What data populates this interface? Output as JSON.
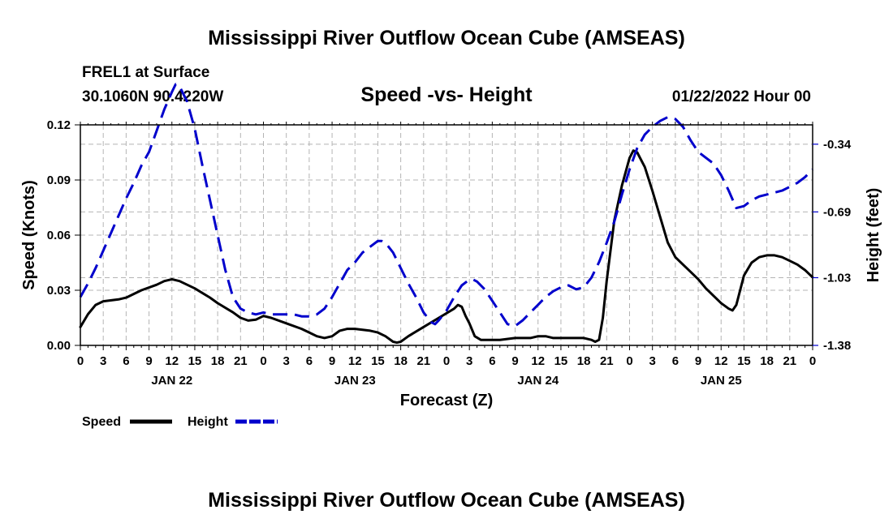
{
  "chart_data": {
    "type": "line",
    "title": "Mississippi River Outflow Ocean Cube (AMSEAS)",
    "title_repeat": "Mississippi River Outflow Ocean Cube (AMSEAS)",
    "station": "FREL1 at Surface",
    "location": "30.1060N  90.4220W",
    "subtitle": "Speed -vs- Height",
    "datetime": "01/22/2022 Hour 00",
    "xlabel": "Forecast (Z)",
    "ylabel_left": "Speed (Knots)",
    "ylabel_right": "Height (feet)",
    "x_range_hours": [
      0,
      96
    ],
    "y_left_range": [
      0,
      0.12
    ],
    "y_right_range": [
      -1.38,
      -0.24
    ],
    "y_left_ticks": [
      "0.00",
      "0.03",
      "0.06",
      "0.09",
      "0.12"
    ],
    "y_right_ticks": [
      "-0.34",
      "-0.69",
      "-1.03",
      "-1.38"
    ],
    "y_right_tick_values": [
      -0.34,
      -0.69,
      -1.03,
      -1.38
    ],
    "x_tick_labels": [
      "0",
      "3",
      "6",
      "9",
      "12",
      "15",
      "18",
      "21",
      "0",
      "3",
      "6",
      "9",
      "12",
      "15",
      "18",
      "21",
      "0",
      "3",
      "6",
      "9",
      "12",
      "15",
      "18",
      "21",
      "0",
      "3",
      "6",
      "9",
      "12",
      "15",
      "18",
      "21",
      "0"
    ],
    "day_labels": [
      {
        "text": "JAN 22",
        "hour": 12
      },
      {
        "text": "JAN 23",
        "hour": 36
      },
      {
        "text": "JAN 24",
        "hour": 60
      },
      {
        "text": "JAN 25",
        "hour": 84
      }
    ],
    "series": [
      {
        "name": "Speed",
        "color": "#000000",
        "axis": "left",
        "style": "solid",
        "points": [
          [
            0,
            0.01
          ],
          [
            1,
            0.017
          ],
          [
            2,
            0.022
          ],
          [
            3,
            0.024
          ],
          [
            5,
            0.025
          ],
          [
            6,
            0.026
          ],
          [
            8,
            0.03
          ],
          [
            10,
            0.033
          ],
          [
            11,
            0.035
          ],
          [
            12,
            0.036
          ],
          [
            13,
            0.035
          ],
          [
            15,
            0.031
          ],
          [
            17,
            0.026
          ],
          [
            18,
            0.023
          ],
          [
            20,
            0.018
          ],
          [
            21,
            0.015
          ],
          [
            22,
            0.0135
          ],
          [
            23,
            0.014
          ],
          [
            24,
            0.016
          ],
          [
            25,
            0.015
          ],
          [
            27,
            0.012
          ],
          [
            29,
            0.009
          ],
          [
            30,
            0.007
          ],
          [
            31,
            0.005
          ],
          [
            32,
            0.004
          ],
          [
            33,
            0.005
          ],
          [
            34,
            0.008
          ],
          [
            35,
            0.009
          ],
          [
            36,
            0.009
          ],
          [
            38,
            0.008
          ],
          [
            39,
            0.007
          ],
          [
            40,
            0.005
          ],
          [
            41,
            0.002
          ],
          [
            41.5,
            0.0015
          ],
          [
            42,
            0.002
          ],
          [
            43,
            0.005
          ],
          [
            45,
            0.01
          ],
          [
            47,
            0.015
          ],
          [
            49,
            0.02
          ],
          [
            49.5,
            0.022
          ],
          [
            50,
            0.021
          ],
          [
            50.5,
            0.016
          ],
          [
            51,
            0.012
          ],
          [
            51.7,
            0.005
          ],
          [
            52.5,
            0.003
          ],
          [
            55,
            0.003
          ],
          [
            57,
            0.004
          ],
          [
            59,
            0.004
          ],
          [
            60,
            0.005
          ],
          [
            61,
            0.005
          ],
          [
            62,
            0.004
          ],
          [
            64,
            0.004
          ],
          [
            66,
            0.004
          ],
          [
            67,
            0.003
          ],
          [
            67.5,
            0.002
          ],
          [
            68,
            0.003
          ],
          [
            68.5,
            0.015
          ],
          [
            69,
            0.035
          ],
          [
            70,
            0.068
          ],
          [
            71,
            0.087
          ],
          [
            72,
            0.102
          ],
          [
            72.5,
            0.106
          ],
          [
            73,
            0.105
          ],
          [
            74,
            0.097
          ],
          [
            75,
            0.084
          ],
          [
            76,
            0.07
          ],
          [
            77,
            0.056
          ],
          [
            78,
            0.048
          ],
          [
            79,
            0.044
          ],
          [
            80,
            0.04
          ],
          [
            81,
            0.036
          ],
          [
            82,
            0.031
          ],
          [
            83,
            0.027
          ],
          [
            84,
            0.023
          ],
          [
            85,
            0.02
          ],
          [
            85.5,
            0.019
          ],
          [
            86,
            0.022
          ],
          [
            86.5,
            0.03
          ],
          [
            87,
            0.038
          ],
          [
            88,
            0.045
          ],
          [
            89,
            0.048
          ],
          [
            90,
            0.049
          ],
          [
            91,
            0.049
          ],
          [
            92,
            0.048
          ],
          [
            93,
            0.046
          ],
          [
            94,
            0.044
          ],
          [
            95,
            0.041
          ],
          [
            96,
            0.037
          ]
        ]
      },
      {
        "name": "Height",
        "color": "#0000cc",
        "axis": "right",
        "style": "dashed",
        "points": [
          [
            0,
            -1.13
          ],
          [
            1,
            -1.06
          ],
          [
            2,
            -0.98
          ],
          [
            3,
            -0.89
          ],
          [
            4,
            -0.8
          ],
          [
            5,
            -0.71
          ],
          [
            6,
            -0.62
          ],
          [
            7,
            -0.54
          ],
          [
            8,
            -0.45
          ],
          [
            9,
            -0.38
          ],
          [
            10,
            -0.27
          ],
          [
            11,
            -0.16
          ],
          [
            12,
            -0.07
          ],
          [
            12.5,
            -0.03
          ],
          [
            13,
            -0.04
          ],
          [
            14,
            -0.12
          ],
          [
            15,
            -0.26
          ],
          [
            16,
            -0.45
          ],
          [
            17,
            -0.63
          ],
          [
            18,
            -0.81
          ],
          [
            19,
            -0.99
          ],
          [
            20,
            -1.13
          ],
          [
            21,
            -1.19
          ],
          [
            22,
            -1.21
          ],
          [
            23,
            -1.22
          ],
          [
            24,
            -1.21
          ],
          [
            25,
            -1.22
          ],
          [
            26,
            -1.22
          ],
          [
            27,
            -1.22
          ],
          [
            28,
            -1.22
          ],
          [
            29,
            -1.23
          ],
          [
            30,
            -1.23
          ],
          [
            31,
            -1.22
          ],
          [
            32,
            -1.19
          ],
          [
            33,
            -1.13
          ],
          [
            34,
            -1.06
          ],
          [
            35,
            -0.99
          ],
          [
            36,
            -0.95
          ],
          [
            37,
            -0.9
          ],
          [
            38,
            -0.87
          ],
          [
            39,
            -0.84
          ],
          [
            39.5,
            -0.84
          ],
          [
            40,
            -0.85
          ],
          [
            41,
            -0.9
          ],
          [
            42,
            -0.98
          ],
          [
            43,
            -1.06
          ],
          [
            44,
            -1.13
          ],
          [
            45,
            -1.21
          ],
          [
            46,
            -1.26
          ],
          [
            46.5,
            -1.27
          ],
          [
            47,
            -1.25
          ],
          [
            48,
            -1.2
          ],
          [
            49,
            -1.13
          ],
          [
            50,
            -1.07
          ],
          [
            51,
            -1.04
          ],
          [
            51.5,
            -1.04
          ],
          [
            52,
            -1.05
          ],
          [
            53,
            -1.09
          ],
          [
            54,
            -1.15
          ],
          [
            55,
            -1.21
          ],
          [
            56,
            -1.27
          ],
          [
            57,
            -1.28
          ],
          [
            58,
            -1.25
          ],
          [
            59,
            -1.21
          ],
          [
            60,
            -1.17
          ],
          [
            61,
            -1.13
          ],
          [
            62,
            -1.1
          ],
          [
            63,
            -1.08
          ],
          [
            64,
            -1.07
          ],
          [
            65,
            -1.09
          ],
          [
            66,
            -1.08
          ],
          [
            67,
            -1.03
          ],
          [
            68,
            -0.95
          ],
          [
            69,
            -0.85
          ],
          [
            70,
            -0.74
          ],
          [
            71,
            -0.6
          ],
          [
            72,
            -0.47
          ],
          [
            73,
            -0.36
          ],
          [
            74,
            -0.29
          ],
          [
            75,
            -0.25
          ],
          [
            76,
            -0.22
          ],
          [
            77,
            -0.2
          ],
          [
            78,
            -0.21
          ],
          [
            79,
            -0.25
          ],
          [
            80,
            -0.32
          ],
          [
            81,
            -0.38
          ],
          [
            82,
            -0.41
          ],
          [
            83,
            -0.44
          ],
          [
            84,
            -0.5
          ],
          [
            85,
            -0.58
          ],
          [
            86,
            -0.67
          ],
          [
            87,
            -0.66
          ],
          [
            88,
            -0.63
          ],
          [
            89,
            -0.61
          ],
          [
            90,
            -0.6
          ],
          [
            91,
            -0.59
          ],
          [
            92,
            -0.58
          ],
          [
            93,
            -0.56
          ],
          [
            94,
            -0.54
          ],
          [
            95,
            -0.51
          ],
          [
            96,
            -0.47
          ]
        ]
      }
    ],
    "legend": [
      {
        "label": "Speed",
        "color": "#000000",
        "style": "solid"
      },
      {
        "label": "Height",
        "color": "#0000cc",
        "style": "dashed"
      }
    ],
    "grid": true
  }
}
